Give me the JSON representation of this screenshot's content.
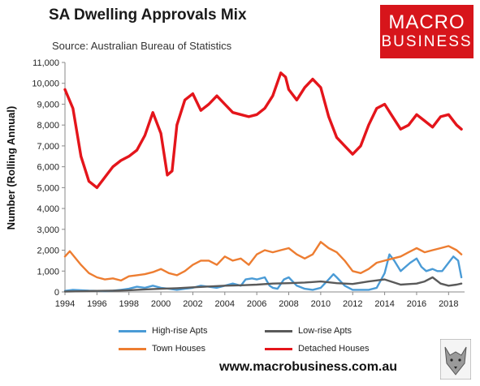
{
  "header": {
    "title": "SA Dwelling Approvals Mix",
    "source": "Source: Australian Bureau of Statistics"
  },
  "logo": {
    "line1": "MACRO",
    "line2": "BUSINESS"
  },
  "footer": {
    "url": "www.macrobusiness.com.au"
  },
  "colors": {
    "high_rise": "#4a9bd6",
    "low_rise": "#5a5a5a",
    "town_houses": "#ed7d31",
    "detached": "#e4151b",
    "logo_bg": "#d7151b"
  },
  "chart_data": {
    "type": "line",
    "title": "SA Dwelling Approvals Mix",
    "ylabel": "Number (Rolling Annual)",
    "xlabel": "",
    "xlim": [
      1994,
      2019
    ],
    "ylim": [
      0,
      11000
    ],
    "xticks": [
      "1994",
      "1996",
      "1998",
      "2000",
      "2002",
      "2004",
      "2006",
      "2008",
      "2010",
      "2012",
      "2014",
      "2016",
      "2018"
    ],
    "yticks": [
      "0",
      "1,000",
      "2,000",
      "3,000",
      "4,000",
      "5,000",
      "6,000",
      "7,000",
      "8,000",
      "9,000",
      "10,000",
      "11,000"
    ],
    "grid": false,
    "legend_position": "bottom",
    "series": [
      {
        "name": "High-rise Apts",
        "x": [
          1994,
          1994.5,
          1995,
          1995.5,
          1996,
          1996.5,
          1997,
          1997.5,
          1998,
          1998.5,
          1999,
          1999.5,
          2000,
          2000.5,
          2001,
          2001.5,
          2002,
          2002.5,
          2003,
          2003.5,
          2004,
          2004.5,
          2005,
          2005.3,
          2005.7,
          2006,
          2006.5,
          2006.8,
          2007,
          2007.3,
          2007.7,
          2008,
          2008.5,
          2009,
          2009.5,
          2010,
          2010.5,
          2010.8,
          2011,
          2011.5,
          2012,
          2012.5,
          2013,
          2013.5,
          2014,
          2014.3,
          2014.6,
          2015,
          2015.3,
          2015.6,
          2016,
          2016.3,
          2016.6,
          2017,
          2017.3,
          2017.6,
          2018,
          2018.3,
          2018.6,
          2018.8
        ],
        "values": [
          50,
          100,
          80,
          60,
          50,
          40,
          60,
          100,
          150,
          250,
          200,
          300,
          200,
          150,
          100,
          150,
          200,
          300,
          250,
          200,
          300,
          400,
          300,
          600,
          650,
          600,
          700,
          300,
          200,
          150,
          600,
          700,
          300,
          150,
          100,
          200,
          600,
          850,
          700,
          300,
          100,
          100,
          100,
          200,
          900,
          1800,
          1500,
          1000,
          1200,
          1400,
          1600,
          1200,
          1000,
          1100,
          1000,
          1000,
          1400,
          1700,
          1500,
          700
        ]
      },
      {
        "name": "Low-rise Apts",
        "x": [
          1994,
          1995,
          1996,
          1997,
          1998,
          1999,
          2000,
          2001,
          2002,
          2003,
          2004,
          2005,
          2006,
          2007,
          2008,
          2009,
          2010,
          2011,
          2012,
          2013,
          2014,
          2015,
          2016,
          2016.5,
          2017,
          2017.5,
          2018,
          2018.5,
          2018.8
        ],
        "values": [
          20,
          30,
          50,
          60,
          80,
          120,
          150,
          180,
          220,
          260,
          300,
          320,
          350,
          400,
          420,
          450,
          500,
          420,
          380,
          500,
          600,
          350,
          400,
          500,
          700,
          400,
          300,
          350,
          400
        ]
      },
      {
        "name": "Town Houses",
        "x": [
          1994,
          1994.3,
          1995,
          1995.5,
          1996,
          1996.5,
          1997,
          1997.5,
          1998,
          1998.5,
          1999,
          1999.5,
          2000,
          2000.5,
          2001,
          2001.5,
          2002,
          2002.5,
          2003,
          2003.5,
          2004,
          2004.5,
          2005,
          2005.5,
          2006,
          2006.5,
          2007,
          2007.5,
          2008,
          2008.5,
          2009,
          2009.5,
          2010,
          2010.5,
          2011,
          2011.5,
          2012,
          2012.5,
          2013,
          2013.5,
          2014,
          2014.5,
          2015,
          2015.5,
          2016,
          2016.5,
          2017,
          2017.5,
          2018,
          2018.5,
          2018.8
        ],
        "values": [
          1700,
          1950,
          1300,
          900,
          700,
          600,
          650,
          550,
          750,
          800,
          850,
          950,
          1100,
          900,
          800,
          1000,
          1300,
          1500,
          1500,
          1300,
          1700,
          1500,
          1600,
          1300,
          1800,
          2000,
          1900,
          2000,
          2100,
          1800,
          1600,
          1800,
          2400,
          2100,
          1900,
          1500,
          1000,
          900,
          1100,
          1400,
          1500,
          1600,
          1700,
          1900,
          2100,
          1900,
          2000,
          2100,
          2200,
          2000,
          1800
        ]
      },
      {
        "name": "Detached Houses",
        "x": [
          1994,
          1994.5,
          1995,
          1995.5,
          1996,
          1996.5,
          1997,
          1997.5,
          1998,
          1998.5,
          1999,
          1999.5,
          2000,
          2000.4,
          2000.7,
          2001,
          2001.5,
          2002,
          2002.5,
          2003,
          2003.5,
          2004,
          2004.5,
          2005,
          2005.5,
          2006,
          2006.5,
          2007,
          2007.5,
          2007.8,
          2008,
          2008.5,
          2009,
          2009.5,
          2010,
          2010.5,
          2011,
          2011.5,
          2012,
          2012.5,
          2013,
          2013.5,
          2014,
          2014.5,
          2015,
          2015.5,
          2016,
          2016.5,
          2017,
          2017.5,
          2018,
          2018.5,
          2018.8
        ],
        "values": [
          9700,
          8800,
          6500,
          5300,
          5000,
          5500,
          6000,
          6300,
          6500,
          6800,
          7500,
          8600,
          7600,
          5600,
          5800,
          8000,
          9200,
          9500,
          8700,
          9000,
          9400,
          9000,
          8600,
          8500,
          8400,
          8500,
          8800,
          9400,
          10500,
          10300,
          9700,
          9200,
          9800,
          10200,
          9800,
          8400,
          7400,
          7000,
          6600,
          7000,
          8000,
          8800,
          9000,
          8400,
          7800,
          8000,
          8500,
          8200,
          7900,
          8400,
          8500,
          8000,
          7800
        ]
      }
    ]
  }
}
